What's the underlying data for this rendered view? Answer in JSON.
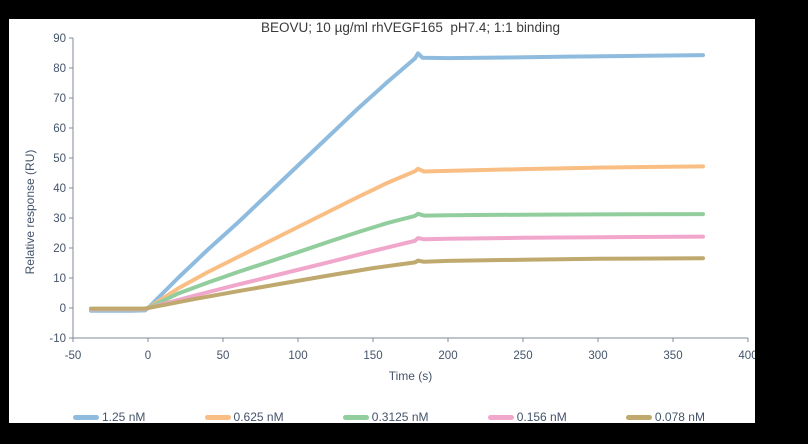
{
  "chart_data": {
    "type": "line",
    "title": "BEOVU; 10 µg/ml rhVEGF165  pH7.4; 1:1 binding",
    "xlabel": "Time (s)",
    "ylabel": "Relative response (RU)",
    "xlim": [
      -50,
      400
    ],
    "ylim": [
      -10,
      90
    ],
    "xticks": [
      -50,
      0,
      50,
      100,
      150,
      200,
      250,
      300,
      350,
      400
    ],
    "yticks": [
      -10,
      0,
      10,
      20,
      30,
      40,
      50,
      60,
      70,
      80,
      90
    ],
    "grid": false,
    "legend_position": "bottom",
    "axis_color": "#808a99",
    "tick_label_color": "#44546A",
    "line_width": 4,
    "series": [
      {
        "name": "1.25 nM",
        "color": "#8FBCDE",
        "points": [
          [
            -38,
            -0.9
          ],
          [
            -10,
            -0.9
          ],
          [
            -2,
            -0.8
          ],
          [
            0,
            0
          ],
          [
            20,
            10
          ],
          [
            40,
            19.5
          ],
          [
            60,
            28.5
          ],
          [
            80,
            38
          ],
          [
            100,
            47.5
          ],
          [
            120,
            57
          ],
          [
            140,
            66.5
          ],
          [
            160,
            75.5
          ],
          [
            178,
            83.2
          ],
          [
            180,
            84.9
          ],
          [
            183,
            83.4
          ],
          [
            200,
            83.3
          ],
          [
            240,
            83.5
          ],
          [
            280,
            83.8
          ],
          [
            320,
            84.0
          ],
          [
            370,
            84.3
          ]
        ]
      },
      {
        "name": "0.625 nM",
        "color": "#F9BE84",
        "points": [
          [
            -38,
            -0.4
          ],
          [
            -2,
            -0.4
          ],
          [
            0,
            0
          ],
          [
            20,
            6.5
          ],
          [
            40,
            12
          ],
          [
            60,
            17
          ],
          [
            80,
            22
          ],
          [
            100,
            27
          ],
          [
            120,
            32
          ],
          [
            140,
            37
          ],
          [
            160,
            41.8
          ],
          [
            178,
            45.6
          ],
          [
            180,
            46.4
          ],
          [
            184,
            45.5
          ],
          [
            200,
            45.7
          ],
          [
            250,
            46.3
          ],
          [
            300,
            46.8
          ],
          [
            370,
            47.2
          ]
        ]
      },
      {
        "name": "0.3125 nM",
        "color": "#92CE9D",
        "points": [
          [
            -38,
            -0.3
          ],
          [
            -2,
            -0.3
          ],
          [
            0,
            0
          ],
          [
            20,
            4.8
          ],
          [
            40,
            8.5
          ],
          [
            60,
            12
          ],
          [
            80,
            15.3
          ],
          [
            100,
            18.6
          ],
          [
            120,
            22
          ],
          [
            140,
            25.3
          ],
          [
            160,
            28.4
          ],
          [
            178,
            30.7
          ],
          [
            180,
            31.4
          ],
          [
            184,
            30.8
          ],
          [
            200,
            30.9
          ],
          [
            250,
            31.1
          ],
          [
            300,
            31.2
          ],
          [
            370,
            31.3
          ]
        ]
      },
      {
        "name": "0.156 nM",
        "color": "#F1A6CC",
        "points": [
          [
            -38,
            -0.3
          ],
          [
            -2,
            -0.3
          ],
          [
            0,
            0
          ],
          [
            30,
            4
          ],
          [
            60,
            7.8
          ],
          [
            90,
            11.5
          ],
          [
            120,
            15.2
          ],
          [
            150,
            19
          ],
          [
            178,
            22.4
          ],
          [
            180,
            23.3
          ],
          [
            184,
            22.9
          ],
          [
            200,
            23.1
          ],
          [
            250,
            23.4
          ],
          [
            300,
            23.6
          ],
          [
            370,
            23.8
          ]
        ]
      },
      {
        "name": "0.078 nM",
        "color": "#C0A96E",
        "points": [
          [
            -38,
            -0.2
          ],
          [
            -2,
            -0.2
          ],
          [
            0,
            0
          ],
          [
            30,
            2.9
          ],
          [
            60,
            5.6
          ],
          [
            90,
            8.2
          ],
          [
            120,
            10.8
          ],
          [
            150,
            13.3
          ],
          [
            178,
            15.2
          ],
          [
            180,
            15.8
          ],
          [
            184,
            15.4
          ],
          [
            200,
            15.7
          ],
          [
            250,
            16.1
          ],
          [
            300,
            16.4
          ],
          [
            370,
            16.6
          ]
        ]
      }
    ]
  }
}
